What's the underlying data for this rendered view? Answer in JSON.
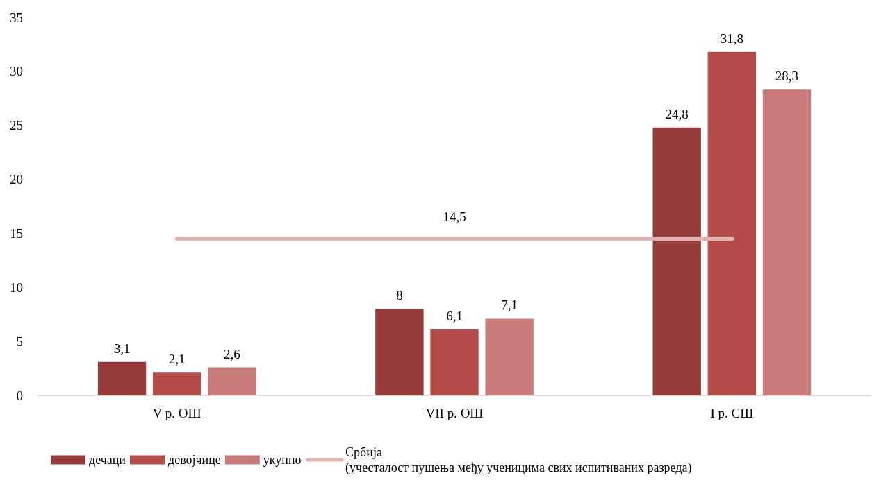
{
  "chart_data": {
    "type": "bar",
    "categories": [
      "V р. ОШ",
      "VII р. ОШ",
      "I р. СШ"
    ],
    "series": [
      {
        "name": "дечаци",
        "color": "#963b3b",
        "values": [
          3.1,
          8,
          24.8
        ],
        "value_labels": [
          "3,1",
          "8",
          "24,8"
        ]
      },
      {
        "name": "девојчице",
        "color": "#b34b49",
        "values": [
          2.1,
          6.1,
          31.8
        ],
        "value_labels": [
          "2,1",
          "6,1",
          "31,8"
        ]
      },
      {
        "name": "укупно",
        "color": "#c97b7b",
        "values": [
          2.6,
          7.1,
          28.3
        ],
        "value_labels": [
          "2,6",
          "7,1",
          "28,3"
        ]
      },
      {
        "name": "Србија\n(учесталост пушења међу ученицима свих испитиваних разреда)",
        "type": "line",
        "color": "#e0b4b4",
        "values": [
          14.5,
          14.5,
          14.5
        ],
        "value_labels": [
          null,
          "14,5",
          null
        ]
      }
    ],
    "ylim": [
      0,
      35
    ],
    "yticks": [
      0,
      5,
      10,
      15,
      20,
      25,
      30,
      35
    ],
    "grid": false,
    "legend": "bottom left",
    "marker": "none"
  }
}
